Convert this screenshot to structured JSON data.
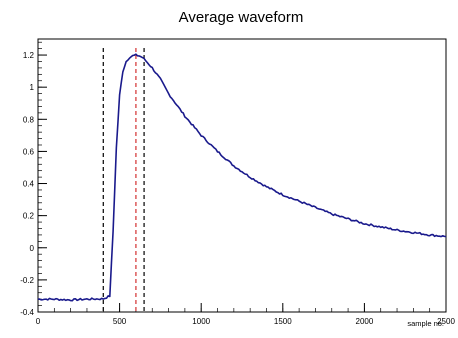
{
  "chart_data": {
    "type": "line",
    "title": "Average waveform",
    "xlabel": "sample no.",
    "ylabel": "",
    "xlim": [
      0,
      2500
    ],
    "ylim": [
      -0.4,
      1.3
    ],
    "x_ticks": [
      0,
      500,
      1000,
      1500,
      2000,
      2500
    ],
    "x_tick_labels": [
      "0",
      "500",
      "1000",
      "1500",
      "2000",
      "2500"
    ],
    "y_ticks": [
      -0.4,
      -0.2,
      0,
      0.2,
      0.4,
      0.6,
      0.8,
      1,
      1.2
    ],
    "y_tick_labels": [
      "-0.4",
      "-0.2",
      "0",
      "0.2",
      "0.4",
      "0.6",
      "0.8",
      "1",
      "1.2"
    ],
    "grid": false,
    "legend": "none",
    "series": [
      {
        "color": "#1a1a8c",
        "x": [
          0,
          100,
          200,
          300,
          400,
          440,
          460,
          480,
          500,
          520,
          540,
          560,
          580,
          600,
          620,
          640,
          660,
          700,
          750,
          800,
          900,
          1000,
          1100,
          1200,
          1300,
          1400,
          1500,
          1600,
          1700,
          1800,
          1900,
          2000,
          2100,
          2200,
          2300,
          2400,
          2500
        ],
        "y": [
          -0.32,
          -0.32,
          -0.325,
          -0.32,
          -0.318,
          -0.3,
          0.1,
          0.62,
          0.95,
          1.1,
          1.16,
          1.185,
          1.195,
          1.2,
          1.195,
          1.185,
          1.165,
          1.12,
          1.05,
          0.96,
          0.82,
          0.7,
          0.6,
          0.51,
          0.44,
          0.38,
          0.33,
          0.29,
          0.25,
          0.21,
          0.18,
          0.15,
          0.13,
          0.11,
          0.095,
          0.08,
          0.07
        ]
      }
    ],
    "vertical_markers": [
      {
        "x": 400,
        "color": "#000000",
        "style": "dashed"
      },
      {
        "x": 600,
        "color": "#d32f2f",
        "style": "dashed"
      },
      {
        "x": 650,
        "color": "#000000",
        "style": "dashed"
      }
    ]
  }
}
